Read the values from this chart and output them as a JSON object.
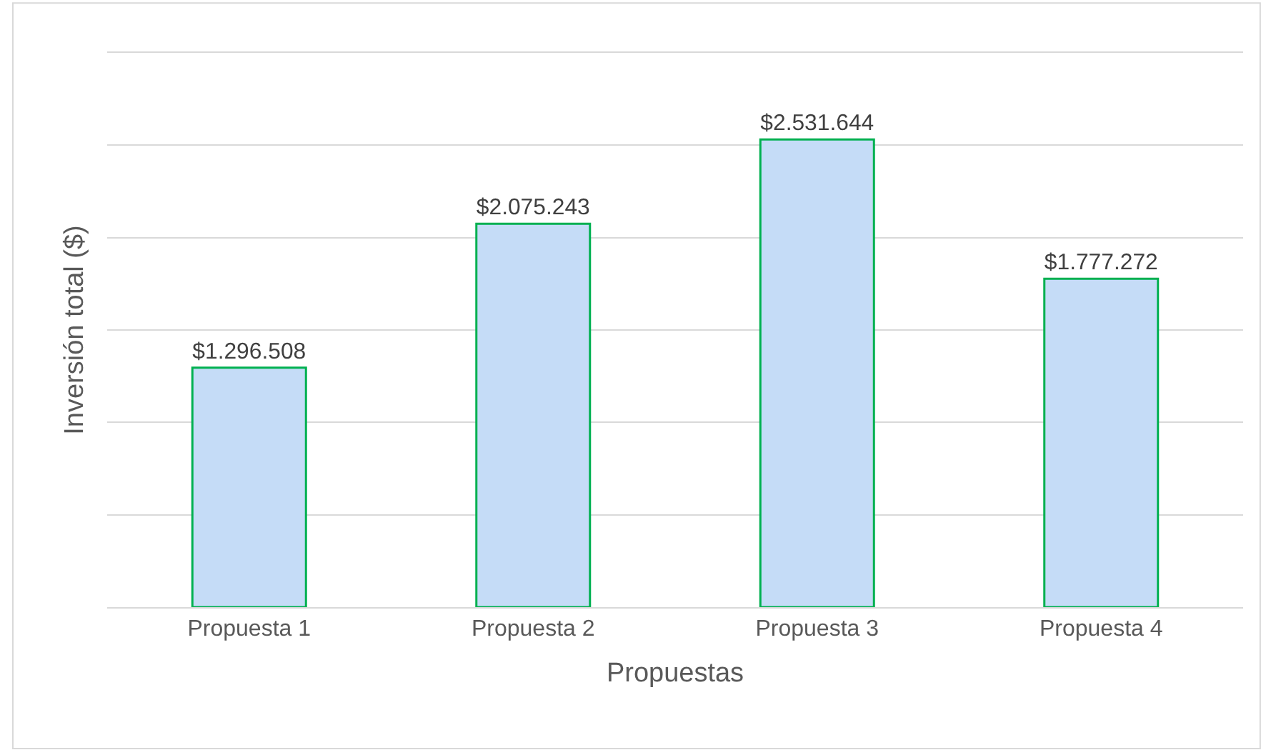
{
  "chart_data": {
    "type": "bar",
    "xlabel": "Propuestas",
    "ylabel": "Inversión total ($)",
    "categories": [
      "Propuesta 1",
      "Propuesta 2",
      "Propuesta 3",
      "Propuesta 4"
    ],
    "values": [
      1296508,
      2075243,
      2531644,
      1777272
    ],
    "value_labels": [
      "$1.296.508",
      "$2.075.243",
      "$2.531.644",
      "$1.777.272"
    ],
    "color": "#c5dcf7",
    "ylim": [
      0,
      3000000
    ],
    "yticks": [
      {
        "value": 0,
        "label": null
      },
      {
        "value": 500000,
        "label": null
      },
      {
        "value": 1000000,
        "label": null
      },
      {
        "value": 1500000,
        "label": null
      },
      {
        "value": 2000000,
        "label": null
      },
      {
        "value": 2500000,
        "label": null
      },
      {
        "value": 3000000,
        "label": null
      }
    ],
    "tick_labels": "x",
    "grid": "y",
    "legend": false
  }
}
